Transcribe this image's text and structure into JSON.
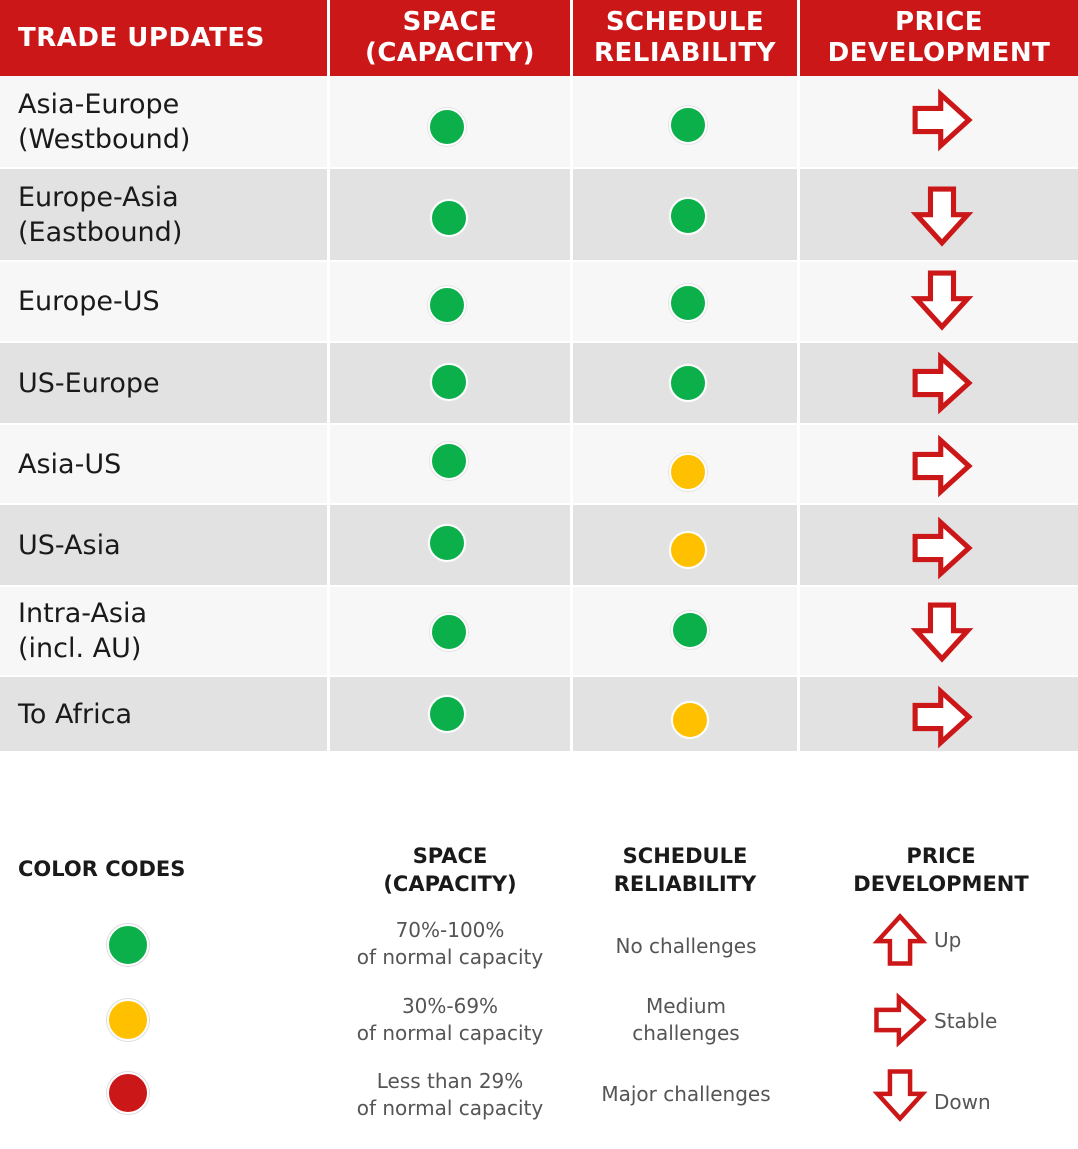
{
  "colors": {
    "header_bg": "#cc1719",
    "green": "#0bb04b",
    "yellow": "#ffc000",
    "red": "#cc1719",
    "row_light": "#f7f7f7",
    "row_dark": "#e2e2e2"
  },
  "header": {
    "trade_updates": "TRADE UPDATES",
    "space": "SPACE\n(CAPACITY)",
    "schedule": "SCHEDULE\nRELIABILITY",
    "price": "PRICE\nDEVELOPMENT"
  },
  "rows": [
    {
      "trade": "Asia-Europe\n(Westbound)",
      "space": "green",
      "schedule": "green",
      "price": "stable-arrow-icon"
    },
    {
      "trade": "Europe-Asia\n(Eastbound)",
      "space": "green",
      "schedule": "green",
      "price": "down-arrow-icon"
    },
    {
      "trade": "Europe-US",
      "space": "green",
      "schedule": "green",
      "price": "down-arrow-icon"
    },
    {
      "trade": "US-Europe",
      "space": "green",
      "schedule": "green",
      "price": "stable-arrow-icon"
    },
    {
      "trade": "Asia-US",
      "space": "green",
      "schedule": "yellow",
      "price": "stable-arrow-icon"
    },
    {
      "trade": "US-Asia",
      "space": "green",
      "schedule": "yellow",
      "price": "stable-arrow-icon"
    },
    {
      "trade": "Intra-Asia\n(incl. AU)",
      "space": "green",
      "schedule": "green",
      "price": "down-arrow-icon"
    },
    {
      "trade": "To Africa",
      "space": "green",
      "schedule": "yellow",
      "price": "stable-arrow-icon"
    }
  ],
  "legend": {
    "title": "COLOR CODES",
    "space_title": "SPACE\n(CAPACITY)",
    "schedule_title": "SCHEDULE\nRELIABILITY",
    "price_title": "PRICE\nDEVELOPMENT",
    "items": [
      {
        "color": "green",
        "space": "70%-100%\nof normal capacity",
        "schedule": "No challenges",
        "price_icon": "up-arrow-icon",
        "price": "Up"
      },
      {
        "color": "yellow",
        "space": "30%-69%\nof normal capacity",
        "schedule": "Medium\nchallenges",
        "price_icon": "stable-arrow-icon",
        "price": "Stable"
      },
      {
        "color": "red",
        "space": "Less than 29%\nof normal capacity",
        "schedule": "Major challenges",
        "price_icon": "down-arrow-icon",
        "price": "Down"
      }
    ]
  }
}
